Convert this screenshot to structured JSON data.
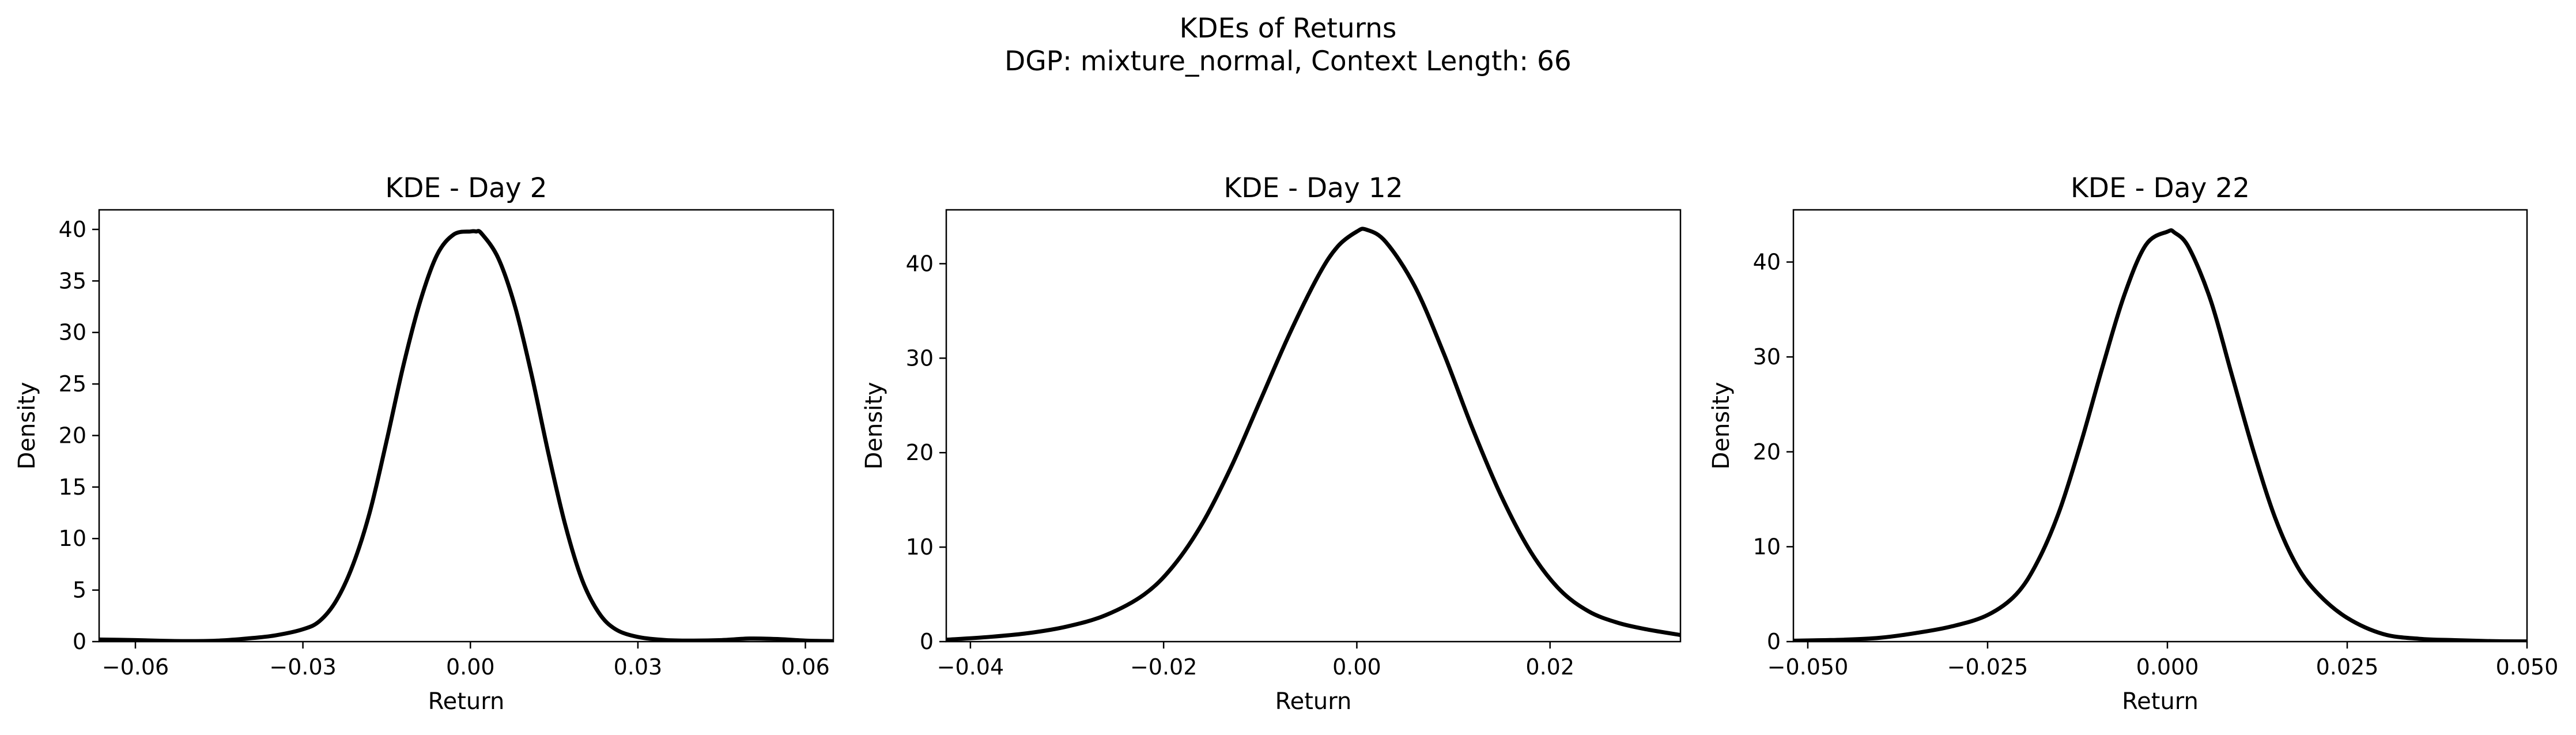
{
  "figure": {
    "title_line1": "KDEs of Returns",
    "title_line2": "DGP: mixture_normal, Context Length: 66"
  },
  "chart_data": [
    {
      "type": "line",
      "title": "KDE - Day 2",
      "xlabel": "Return",
      "ylabel": "Density",
      "xlim": [
        -0.0665,
        0.065
      ],
      "ylim": [
        0,
        41.9
      ],
      "xticks": [
        -0.06,
        -0.03,
        0.0,
        0.03,
        0.06
      ],
      "xtick_labels": [
        "−0.06",
        "−0.03",
        "0.00",
        "0.03",
        "0.06"
      ],
      "yticks": [
        0,
        5,
        10,
        15,
        20,
        25,
        30,
        35,
        40
      ],
      "ytick_labels": [
        "0",
        "5",
        "10",
        "15",
        "20",
        "25",
        "30",
        "35",
        "40"
      ],
      "grid": false,
      "color": "#000000",
      "series": [
        {
          "x": [
            -0.0665,
            -0.06,
            -0.055,
            -0.05,
            -0.045,
            -0.04,
            -0.035,
            -0.03,
            -0.027,
            -0.024,
            -0.021,
            -0.018,
            -0.015,
            -0.012,
            -0.009,
            -0.006,
            -0.003,
            0.0,
            0.001,
            0.002,
            0.005,
            0.008,
            0.011,
            0.014,
            0.017,
            0.02,
            0.023,
            0.026,
            0.03,
            0.035,
            0.04,
            0.045,
            0.05,
            0.055,
            0.06,
            0.065
          ],
          "y": [
            0.2,
            0.15,
            0.08,
            0.05,
            0.1,
            0.3,
            0.6,
            1.2,
            2.0,
            4.0,
            7.5,
            12.6,
            19.5,
            26.8,
            33.0,
            37.5,
            39.5,
            39.8,
            39.8,
            39.6,
            37.2,
            32.5,
            25.8,
            18.2,
            11.3,
            6.0,
            2.8,
            1.2,
            0.45,
            0.15,
            0.1,
            0.15,
            0.3,
            0.25,
            0.1,
            0.05
          ]
        }
      ]
    },
    {
      "type": "line",
      "title": "KDE - Day 12",
      "xlabel": "Return",
      "ylabel": "Density",
      "xlim": [
        -0.0425,
        0.0335
      ],
      "ylim": [
        0,
        45.7
      ],
      "xticks": [
        -0.04,
        -0.02,
        0.0,
        0.02
      ],
      "xtick_labels": [
        "−0.04",
        "−0.02",
        "0.00",
        "0.02"
      ],
      "yticks": [
        0,
        10,
        20,
        30,
        40
      ],
      "ytick_labels": [
        "0",
        "10",
        "20",
        "30",
        "40"
      ],
      "grid": false,
      "color": "#000000",
      "series": [
        {
          "x": [
            -0.0425,
            -0.038,
            -0.034,
            -0.03,
            -0.026,
            -0.022,
            -0.019,
            -0.016,
            -0.013,
            -0.01,
            -0.007,
            -0.004,
            -0.002,
            0.0,
            0.001,
            0.003,
            0.006,
            0.009,
            0.012,
            0.015,
            0.018,
            0.021,
            0.024,
            0.027,
            0.03,
            0.0335
          ],
          "y": [
            0.2,
            0.5,
            0.9,
            1.6,
            2.8,
            5.0,
            8.0,
            12.5,
            18.5,
            25.5,
            32.5,
            38.7,
            41.8,
            43.4,
            43.6,
            42.3,
            37.6,
            30.5,
            22.5,
            15.3,
            9.5,
            5.5,
            3.2,
            2.0,
            1.3,
            0.7
          ]
        }
      ]
    },
    {
      "type": "line",
      "title": "KDE - Day 22",
      "xlabel": "Return",
      "ylabel": "Density",
      "xlim": [
        -0.052,
        0.05
      ],
      "ylim": [
        0,
        45.5
      ],
      "xticks": [
        -0.05,
        -0.025,
        0.0,
        0.025,
        0.05
      ],
      "xtick_labels": [
        "−0.050",
        "−0.025",
        "0.000",
        "0.025",
        "0.050"
      ],
      "yticks": [
        0,
        10,
        20,
        30,
        40
      ],
      "ytick_labels": [
        "0",
        "10",
        "20",
        "30",
        "40"
      ],
      "grid": false,
      "color": "#000000",
      "series": [
        {
          "x": [
            -0.052,
            -0.045,
            -0.04,
            -0.035,
            -0.03,
            -0.025,
            -0.021,
            -0.018,
            -0.015,
            -0.012,
            -0.009,
            -0.006,
            -0.003,
            0.0,
            0.001,
            0.003,
            0.006,
            0.009,
            0.012,
            0.015,
            0.018,
            0.021,
            0.025,
            0.03,
            0.035,
            0.04,
            0.045,
            0.05
          ],
          "y": [
            0.1,
            0.2,
            0.4,
            0.9,
            1.6,
            2.8,
            5.0,
            8.5,
            13.8,
            21.0,
            29.0,
            36.5,
            41.8,
            43.2,
            43.1,
            41.5,
            36.0,
            28.0,
            20.0,
            13.0,
            8.0,
            5.0,
            2.5,
            0.8,
            0.3,
            0.15,
            0.05,
            0.02
          ]
        }
      ]
    }
  ]
}
